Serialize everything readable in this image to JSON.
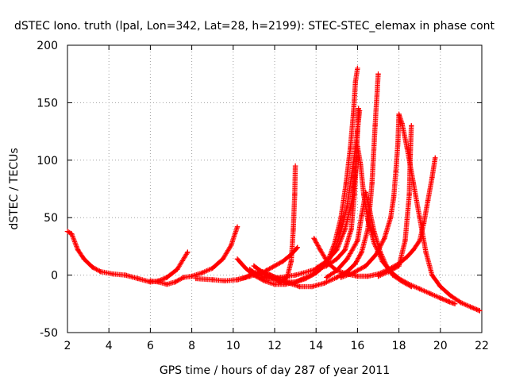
{
  "chart_data": {
    "type": "scatter",
    "title": "dSTEC Iono. truth (lpal, Lon=342, Lat=28, h=2199): STEC-STEC_elemax in phase cont",
    "xlabel": "GPS time / hours of day 287 of year 2011",
    "ylabel": "dSTEC  / TECUs",
    "xlim": [
      2,
      22
    ],
    "ylim": [
      -50,
      200
    ],
    "xticks": [
      2,
      4,
      6,
      8,
      10,
      12,
      14,
      16,
      18,
      20,
      22
    ],
    "yticks": [
      -50,
      0,
      50,
      100,
      150,
      200
    ],
    "grid": true,
    "marker": "+",
    "color": "#ff0000",
    "series": [
      {
        "points": [
          [
            2.0,
            38
          ],
          [
            2.2,
            36
          ],
          [
            2.5,
            22
          ],
          [
            2.8,
            14
          ],
          [
            3.2,
            7
          ],
          [
            3.6,
            3
          ],
          [
            4.2,
            1
          ],
          [
            4.8,
            0
          ],
          [
            5.4,
            -3
          ],
          [
            6.0,
            -6
          ],
          [
            6.4,
            -5
          ],
          [
            6.8,
            -2
          ],
          [
            7.3,
            5
          ],
          [
            7.8,
            20
          ]
        ]
      },
      {
        "points": [
          [
            6.0,
            -5
          ],
          [
            6.4,
            -6
          ],
          [
            6.8,
            -8
          ],
          [
            7.2,
            -6
          ],
          [
            7.6,
            -2
          ],
          [
            8.0,
            -1
          ],
          [
            8.5,
            2
          ],
          [
            9.0,
            6
          ],
          [
            9.5,
            14
          ],
          [
            9.9,
            26
          ],
          [
            10.2,
            42
          ]
        ]
      },
      {
        "points": [
          [
            8.2,
            -3
          ],
          [
            9.0,
            -4
          ],
          [
            9.6,
            -5
          ],
          [
            10.2,
            -4
          ],
          [
            10.8,
            -1
          ],
          [
            11.3,
            2
          ],
          [
            11.8,
            0
          ],
          [
            12.2,
            -4
          ],
          [
            12.6,
            -6
          ],
          [
            13.0,
            -6
          ],
          [
            13.4,
            -3
          ],
          [
            13.8,
            0
          ],
          [
            14.2,
            5
          ],
          [
            14.6,
            14
          ],
          [
            14.9,
            28
          ],
          [
            15.2,
            50
          ],
          [
            15.45,
            80
          ],
          [
            15.65,
            110
          ],
          [
            15.8,
            140
          ],
          [
            15.9,
            168
          ],
          [
            16.0,
            180
          ]
        ]
      },
      {
        "points": [
          [
            10.2,
            14
          ],
          [
            10.6,
            6
          ],
          [
            11.0,
            0
          ],
          [
            11.5,
            -5
          ],
          [
            12.0,
            -8
          ],
          [
            12.5,
            -8
          ],
          [
            13.0,
            -6
          ],
          [
            13.5,
            -3
          ],
          [
            14.0,
            2
          ],
          [
            14.5,
            10
          ],
          [
            14.9,
            22
          ],
          [
            15.2,
            38
          ],
          [
            15.5,
            60
          ],
          [
            15.7,
            85
          ],
          [
            15.9,
            110
          ],
          [
            16.1,
            143
          ]
        ]
      },
      {
        "points": [
          [
            10.2,
            -4
          ],
          [
            10.6,
            -2
          ],
          [
            11.0,
            2
          ],
          [
            11.4,
            3
          ],
          [
            11.8,
            0
          ],
          [
            12.2,
            -3
          ],
          [
            12.7,
            -7
          ],
          [
            13.2,
            -10
          ],
          [
            13.8,
            -10
          ],
          [
            14.4,
            -7
          ],
          [
            15.0,
            -2
          ],
          [
            15.5,
            3
          ],
          [
            15.9,
            10
          ],
          [
            16.2,
            20
          ],
          [
            16.5,
            40
          ],
          [
            16.7,
            80
          ],
          [
            16.85,
            130
          ],
          [
            17.0,
            175
          ]
        ]
      },
      {
        "points": [
          [
            11.0,
            8
          ],
          [
            11.3,
            4
          ],
          [
            11.6,
            0
          ],
          [
            12.0,
            -4
          ],
          [
            12.3,
            -6
          ],
          [
            12.6,
            -2
          ],
          [
            12.8,
            12
          ],
          [
            12.9,
            40
          ],
          [
            12.97,
            70
          ],
          [
            13.0,
            95
          ]
        ]
      },
      {
        "points": [
          [
            11.2,
            0
          ],
          [
            11.6,
            4
          ],
          [
            12.0,
            8
          ],
          [
            12.4,
            12
          ],
          [
            12.8,
            18
          ],
          [
            13.1,
            24
          ]
        ]
      },
      {
        "points": [
          [
            10.8,
            5
          ],
          [
            11.2,
            0
          ],
          [
            11.7,
            -3
          ],
          [
            12.3,
            -2
          ],
          [
            13.0,
            0
          ],
          [
            13.8,
            4
          ],
          [
            14.5,
            8
          ],
          [
            15.0,
            14
          ],
          [
            15.4,
            22
          ],
          [
            15.7,
            40
          ],
          [
            15.85,
            70
          ],
          [
            15.95,
            100
          ],
          [
            16.0,
            125
          ],
          [
            16.05,
            145
          ]
        ]
      },
      {
        "points": [
          [
            13.9,
            32
          ],
          [
            14.2,
            22
          ],
          [
            14.6,
            10
          ],
          [
            15.0,
            4
          ],
          [
            15.5,
            1
          ],
          [
            16.0,
            -1
          ],
          [
            16.5,
            -1
          ],
          [
            17.0,
            1
          ],
          [
            17.5,
            5
          ],
          [
            18.0,
            10
          ],
          [
            18.4,
            16
          ],
          [
            18.7,
            22
          ],
          [
            19.0,
            30
          ],
          [
            19.2,
            45
          ],
          [
            19.4,
            65
          ],
          [
            19.6,
            85
          ],
          [
            19.75,
            102
          ]
        ]
      },
      {
        "points": [
          [
            14.0,
            6
          ],
          [
            14.5,
            12
          ],
          [
            15.0,
            22
          ],
          [
            15.4,
            40
          ],
          [
            15.7,
            62
          ],
          [
            15.9,
            90
          ],
          [
            16.0,
            112
          ],
          [
            16.15,
            96
          ],
          [
            16.3,
            70
          ],
          [
            16.5,
            48
          ],
          [
            16.8,
            28
          ],
          [
            17.2,
            12
          ],
          [
            17.6,
            3
          ],
          [
            18.0,
            -3
          ],
          [
            18.5,
            -8
          ],
          [
            19.0,
            -12
          ],
          [
            19.5,
            -16
          ],
          [
            20.0,
            -20
          ],
          [
            20.4,
            -23
          ],
          [
            20.7,
            -25
          ]
        ]
      },
      {
        "points": [
          [
            14.5,
            -2
          ],
          [
            15.0,
            4
          ],
          [
            15.5,
            14
          ],
          [
            16.0,
            30
          ],
          [
            16.2,
            52
          ],
          [
            16.4,
            72
          ],
          [
            16.6,
            55
          ],
          [
            16.8,
            38
          ],
          [
            17.1,
            20
          ],
          [
            17.4,
            8
          ],
          [
            17.7,
            0
          ],
          [
            18.1,
            -5
          ],
          [
            18.6,
            -10
          ]
        ]
      },
      {
        "points": [
          [
            15.2,
            -2
          ],
          [
            15.8,
            2
          ],
          [
            16.4,
            8
          ],
          [
            16.9,
            18
          ],
          [
            17.3,
            32
          ],
          [
            17.6,
            50
          ],
          [
            17.75,
            68
          ],
          [
            17.85,
            90
          ],
          [
            17.95,
            115
          ],
          [
            18.0,
            140
          ],
          [
            18.15,
            132
          ],
          [
            18.4,
            110
          ],
          [
            18.7,
            80
          ],
          [
            19.0,
            50
          ],
          [
            19.3,
            20
          ],
          [
            19.6,
            0
          ],
          [
            20.0,
            -10
          ],
          [
            20.5,
            -18
          ],
          [
            21.0,
            -24
          ],
          [
            21.5,
            -28
          ],
          [
            21.9,
            -31
          ]
        ]
      },
      {
        "points": [
          [
            17.0,
            -1
          ],
          [
            17.5,
            3
          ],
          [
            18.0,
            8
          ],
          [
            18.3,
            30
          ],
          [
            18.5,
            70
          ],
          [
            18.55,
            105
          ],
          [
            18.6,
            130
          ]
        ]
      }
    ]
  }
}
